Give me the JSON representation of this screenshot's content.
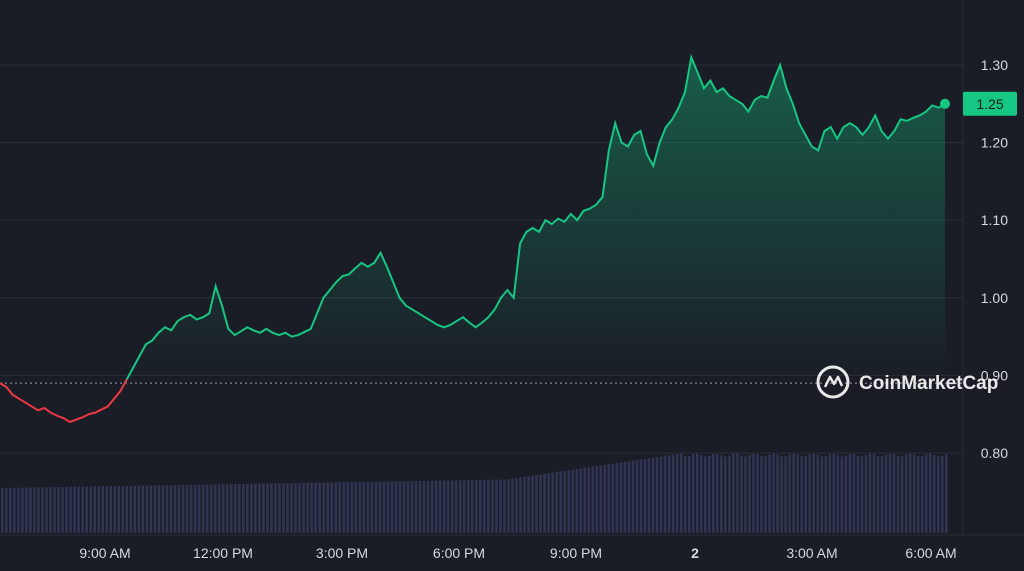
{
  "chart_data": {
    "type": "area",
    "y_axis": {
      "ticks": [
        0.8,
        0.9,
        1.0,
        1.1,
        1.2,
        1.3
      ],
      "tick_labels": [
        "0.80",
        "0.90",
        "1.00",
        "1.10",
        "1.20",
        "1.30"
      ],
      "range": [
        0.75,
        1.33
      ]
    },
    "x_axis": {
      "tick_labels": [
        "9:00 AM",
        "12:00 PM",
        "3:00 PM",
        "6:00 PM",
        "9:00 PM",
        "2",
        "3:00 AM",
        "6:00 AM"
      ]
    },
    "baseline": 0.89,
    "current_price": 1.25,
    "current_price_label": "1.25",
    "grid": true,
    "colors": {
      "up": "#16c784",
      "down": "#ea3943",
      "background": "#1a1c26",
      "grid": "#2a2d3a",
      "volume": "#3a4066"
    },
    "series": [
      {
        "values": [
          0.89,
          0.885,
          0.875,
          0.87,
          0.865,
          0.86,
          0.855,
          0.858,
          0.852,
          0.848,
          0.845,
          0.84,
          0.843,
          0.846,
          0.85,
          0.852,
          0.856,
          0.86,
          0.87,
          0.88,
          0.895,
          0.91,
          0.925,
          0.94,
          0.945,
          0.955,
          0.962,
          0.958,
          0.97,
          0.975,
          0.978,
          0.972,
          0.975,
          0.98,
          1.015,
          0.99,
          0.96,
          0.952,
          0.957,
          0.962,
          0.958,
          0.955,
          0.96,
          0.955,
          0.952,
          0.955,
          0.95,
          0.952,
          0.956,
          0.96,
          0.98,
          1.0,
          1.01,
          1.02,
          1.028,
          1.03,
          1.038,
          1.045,
          1.04,
          1.045,
          1.058,
          1.04,
          1.02,
          1.0,
          0.99,
          0.985,
          0.98,
          0.975,
          0.97,
          0.965,
          0.962,
          0.965,
          0.97,
          0.975,
          0.968,
          0.962,
          0.968,
          0.975,
          0.985,
          1.0,
          1.01,
          1.0,
          1.07,
          1.085,
          1.09,
          1.085,
          1.1,
          1.095,
          1.102,
          1.098,
          1.108,
          1.1,
          1.112,
          1.115,
          1.12,
          1.13,
          1.19,
          1.225,
          1.2,
          1.195,
          1.21,
          1.215,
          1.185,
          1.17,
          1.2,
          1.22,
          1.23,
          1.245,
          1.265,
          1.31,
          1.29,
          1.27,
          1.28,
          1.265,
          1.27,
          1.26,
          1.255,
          1.25,
          1.24,
          1.255,
          1.26,
          1.258,
          1.28,
          1.3,
          1.27,
          1.25,
          1.225,
          1.21,
          1.195,
          1.19,
          1.215,
          1.22,
          1.205,
          1.22,
          1.225,
          1.22,
          1.21,
          1.22,
          1.235,
          1.215,
          1.205,
          1.215,
          1.23,
          1.228,
          1.232,
          1.235,
          1.24,
          1.248,
          1.245,
          1.25
        ]
      }
    ]
  },
  "watermark": {
    "brand": "CoinMarketCap",
    "icon": "coinmarketcap-logo-icon"
  }
}
